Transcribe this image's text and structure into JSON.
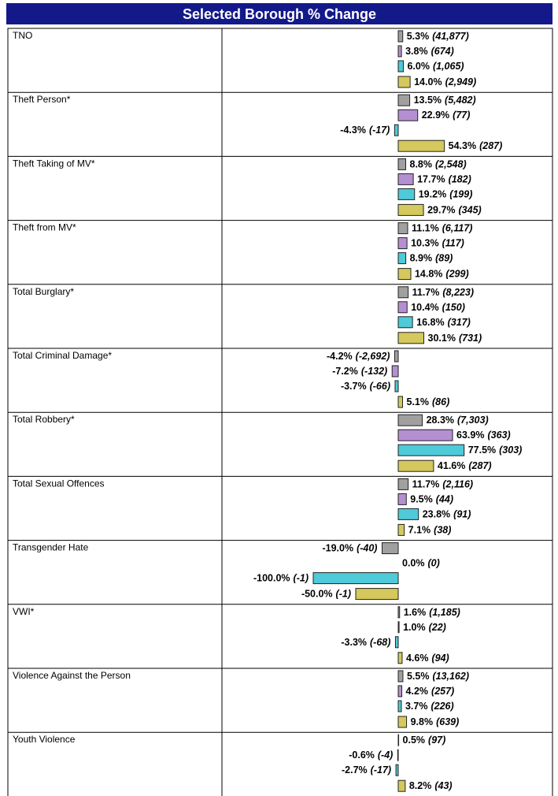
{
  "chart_data": {
    "type": "bar",
    "orientation": "horizontal",
    "title": "Selected Borough % Change",
    "categories": [
      "TNO",
      "Theft Person*",
      "Theft Taking of MV*",
      "Theft from MV*",
      "Total Burglary*",
      "Total Criminal Damage*",
      "Total Robbery*",
      "Total Sexual Offences",
      "Transgender Hate",
      "VWI*",
      "Violence Against the Person",
      "Youth Violence"
    ],
    "series": [
      {
        "color": "#a0a0a0",
        "values": [
          5.3,
          13.5,
          8.8,
          11.1,
          11.7,
          -4.2,
          28.3,
          11.7,
          -19.0,
          1.6,
          5.5,
          0.5
        ],
        "value_labels": [
          "5.3%",
          "13.5%",
          "8.8%",
          "11.1%",
          "11.7%",
          "-4.2%",
          "28.3%",
          "11.7%",
          "-19.0%",
          "1.6%",
          "5.5%",
          "0.5%"
        ],
        "count_labels": [
          "(41,877)",
          "(5,482)",
          "(2,548)",
          "(6,117)",
          "(8,223)",
          "(-2,692)",
          "(7,303)",
          "(2,116)",
          "(-40)",
          "(1,185)",
          "(13,162)",
          "(97)"
        ]
      },
      {
        "color": "#b48fd2",
        "values": [
          3.8,
          22.9,
          17.7,
          10.3,
          10.4,
          -7.2,
          63.9,
          9.5,
          0.0,
          1.0,
          4.2,
          -0.6
        ],
        "value_labels": [
          "3.8%",
          "22.9%",
          "17.7%",
          "10.3%",
          "10.4%",
          "-7.2%",
          "63.9%",
          "9.5%",
          "0.0%",
          "1.0%",
          "4.2%",
          "-0.6%"
        ],
        "count_labels": [
          "(674)",
          "(77)",
          "(182)",
          "(117)",
          "(150)",
          "(-132)",
          "(363)",
          "(44)",
          "(0)",
          "(22)",
          "(257)",
          "(-4)"
        ]
      },
      {
        "color": "#4ecad8",
        "values": [
          6.0,
          -4.3,
          19.2,
          8.9,
          16.8,
          -3.7,
          77.5,
          23.8,
          -100.0,
          -3.3,
          3.7,
          -2.7
        ],
        "value_labels": [
          "6.0%",
          "-4.3%",
          "19.2%",
          "8.9%",
          "16.8%",
          "-3.7%",
          "77.5%",
          "23.8%",
          "-100.0%",
          "-3.3%",
          "3.7%",
          "-2.7%"
        ],
        "count_labels": [
          "(1,065)",
          "(-17)",
          "(199)",
          "(89)",
          "(317)",
          "(-66)",
          "(303)",
          "(91)",
          "(-1)",
          "(-68)",
          "(226)",
          "(-17)"
        ]
      },
      {
        "color": "#d5c85c",
        "values": [
          14.0,
          54.3,
          29.7,
          14.8,
          30.1,
          5.1,
          41.6,
          7.1,
          -50.0,
          4.6,
          9.8,
          8.2
        ],
        "value_labels": [
          "14.0%",
          "54.3%",
          "29.7%",
          "14.8%",
          "30.1%",
          "5.1%",
          "41.6%",
          "7.1%",
          "-50.0%",
          "4.6%",
          "9.8%",
          "8.2%"
        ],
        "count_labels": [
          "(2,949)",
          "(287)",
          "(345)",
          "(299)",
          "(731)",
          "(86)",
          "(287)",
          "(38)",
          "(-1)",
          "(94)",
          "(639)",
          "(43)"
        ]
      }
    ]
  }
}
